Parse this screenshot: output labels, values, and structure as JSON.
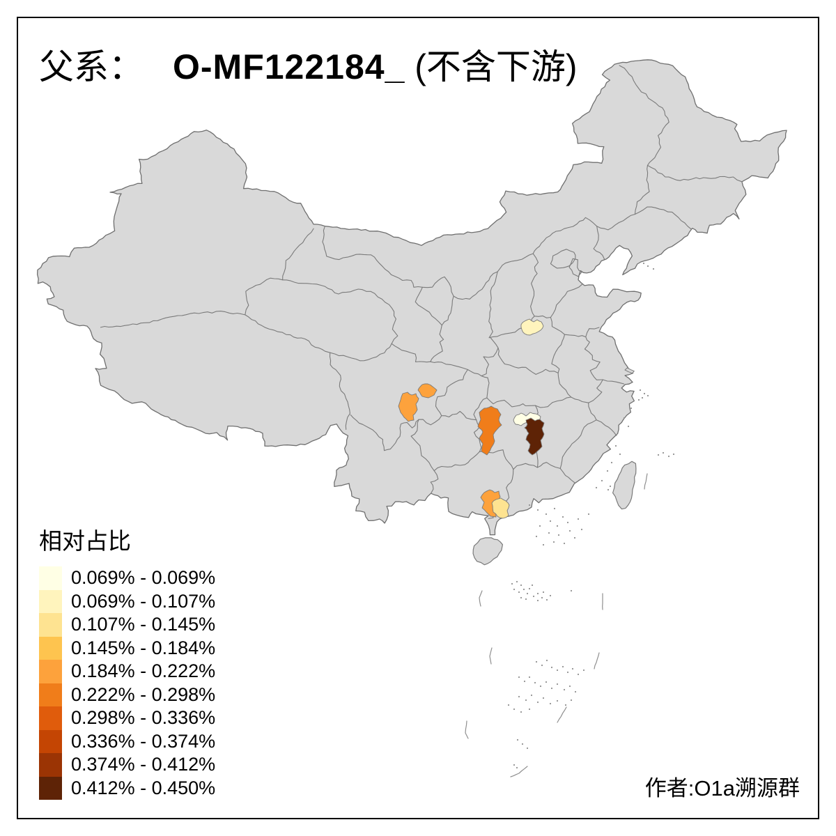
{
  "title": {
    "prefix": "父系：",
    "id": "O-MF122184_",
    "suffix": " (不含下游)"
  },
  "legend": {
    "title": "相对占比",
    "bins": [
      {
        "label": "0.069% - 0.069%",
        "color": "#ffffe5"
      },
      {
        "label": "0.069% - 0.107%",
        "color": "#fff4bd"
      },
      {
        "label": "0.107% - 0.145%",
        "color": "#fee391"
      },
      {
        "label": "0.145% - 0.184%",
        "color": "#fec44f"
      },
      {
        "label": "0.184% - 0.222%",
        "color": "#fda23c"
      },
      {
        "label": "0.222% - 0.298%",
        "color": "#f07d1a"
      },
      {
        "label": "0.298% - 0.336%",
        "color": "#e05c0c"
      },
      {
        "label": "0.336% - 0.374%",
        "color": "#c44503"
      },
      {
        "label": "0.374% - 0.412%",
        "color": "#9b3404"
      },
      {
        "label": "0.412% - 0.450%",
        "color": "#5e2306"
      }
    ]
  },
  "author": "作者:O1a溯源群",
  "map": {
    "background": "#ffffff",
    "base_fill": "#d9d9d9",
    "border_color": "#7a7a7a",
    "frame_color": "#000000",
    "regions": [
      {
        "name": "region-north-henan",
        "bin": 1
      },
      {
        "name": "region-sichuan-south",
        "bin": 4
      },
      {
        "name": "region-sichuan-mid",
        "bin": 4
      },
      {
        "name": "region-west-hunan",
        "bin": 5
      },
      {
        "name": "region-central-hunan-north",
        "bin": 0
      },
      {
        "name": "region-central-hunan",
        "bin": 9
      },
      {
        "name": "region-guangxi-south",
        "bin": 4
      },
      {
        "name": "region-guangxi-southeast",
        "bin": 2
      }
    ]
  }
}
